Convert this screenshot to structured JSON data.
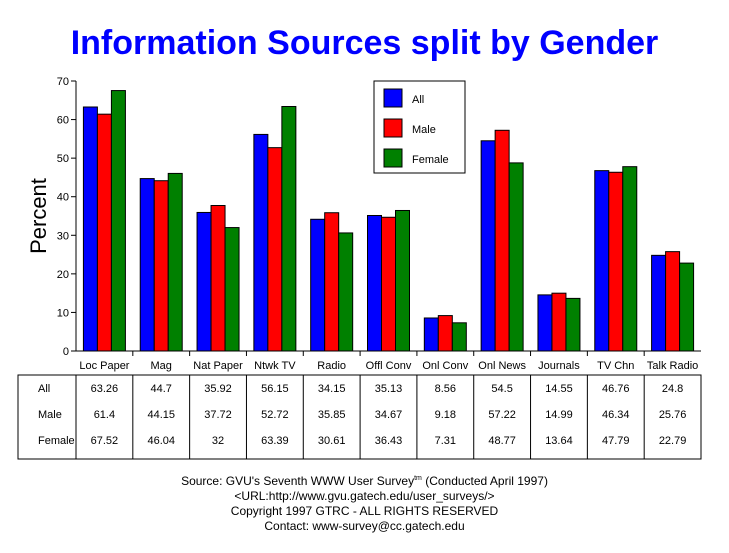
{
  "title": "Information Sources split by Gender",
  "chart_data": {
    "type": "bar",
    "title": "Information Sources split by Gender",
    "xlabel": "",
    "ylabel": "Percent",
    "ylim": [
      0,
      70
    ],
    "yticks": [
      0,
      10,
      20,
      30,
      40,
      50,
      60,
      70
    ],
    "grid": false,
    "legend_position": "top-center",
    "categories": [
      "Loc Paper",
      "Mag",
      "Nat Paper",
      "Ntwk TV",
      "Radio",
      "Offl Conv",
      "Onl Conv",
      "Onl News",
      "Journals",
      "TV Chn",
      "Talk Radio"
    ],
    "series": [
      {
        "name": "All",
        "color": "#0000ff",
        "values": [
          63.26,
          44.7,
          35.92,
          56.15,
          34.15,
          35.13,
          8.56,
          54.5,
          14.55,
          46.76,
          24.8
        ]
      },
      {
        "name": "Male",
        "color": "#ff0000",
        "values": [
          61.4,
          44.15,
          37.72,
          52.72,
          35.85,
          34.67,
          9.18,
          57.22,
          14.99,
          46.34,
          25.76
        ]
      },
      {
        "name": "Female",
        "color": "#008000",
        "values": [
          67.52,
          46.04,
          32,
          63.39,
          30.61,
          36.43,
          7.31,
          48.77,
          13.64,
          47.79,
          22.79
        ]
      }
    ],
    "table_rows": [
      {
        "label": "All",
        "cells": [
          "63.26",
          "44.7",
          "35.92",
          "56.15",
          "34.15",
          "35.13",
          "8.56",
          "54.5",
          "14.55",
          "46.76",
          "24.8"
        ]
      },
      {
        "label": "Male",
        "cells": [
          "61.4",
          "44.15",
          "37.72",
          "52.72",
          "35.85",
          "34.67",
          "9.18",
          "57.22",
          "14.99",
          "46.34",
          "25.76"
        ]
      },
      {
        "label": "Female",
        "cells": [
          "67.52",
          "46.04",
          "32",
          "63.39",
          "30.61",
          "36.43",
          "7.31",
          "48.77",
          "13.64",
          "47.79",
          "22.79"
        ]
      }
    ]
  },
  "footer": {
    "source_prefix": "Source: GVU's Seventh WWW User Survey",
    "tm": "tm",
    "source_suffix": " (Conducted April 1997)",
    "url": "<URL:http://www.gvu.gatech.edu/user_surveys/>",
    "copyright": "Copyright 1997 GTRC - ALL RIGHTS RESERVED",
    "contact": "Contact: www-survey@cc.gatech.edu"
  }
}
